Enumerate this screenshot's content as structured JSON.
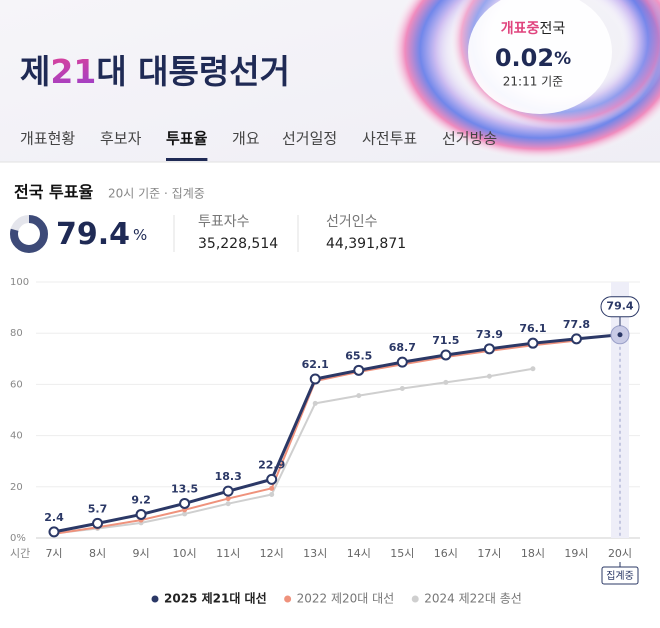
{
  "header": {
    "title_pre": "제",
    "title_num": "21",
    "title_post": "대 대통령선거",
    "status": "개표중",
    "region": "전국",
    "count_rate": "0.02",
    "count_unit": "%",
    "time": "21:11 기준"
  },
  "tabs": [
    "개표현황",
    "후보자",
    "투표율",
    "개요",
    "선거일정",
    "사전투표",
    "선거방송"
  ],
  "active_tab": 2,
  "turnout": {
    "title": "전국 투표율",
    "basis": "20시 기준 · 집계중",
    "rate": 79.4,
    "unit": "%",
    "voters_label": "투표자수",
    "voters": "35,228,514",
    "electors_label": "선거인수",
    "electors": "44,391,871"
  },
  "chart_data": {
    "type": "line",
    "x_label": "시간",
    "categories": [
      "7시",
      "8시",
      "9시",
      "10시",
      "11시",
      "12시",
      "13시",
      "14시",
      "15시",
      "16시",
      "17시",
      "18시",
      "19시",
      "20시"
    ],
    "series": [
      {
        "name": "2025 제21대 대선",
        "color": "#2b3866",
        "values": [
          2.4,
          5.7,
          9.2,
          13.5,
          18.3,
          22.9,
          62.1,
          65.5,
          68.7,
          71.5,
          73.9,
          76.1,
          77.8,
          79.4
        ]
      },
      {
        "name": "2022 제20대 대선",
        "color": "#ef927c",
        "values": [
          1.6,
          4.2,
          7.0,
          11.0,
          15.4,
          19.4,
          61.3,
          64.9,
          67.8,
          70.7,
          73.1,
          75.3,
          77.1,
          null
        ]
      },
      {
        "name": "2024 제22대 총선",
        "color": "#cfcfcf",
        "values": [
          1.8,
          3.7,
          5.9,
          9.4,
          13.4,
          17.0,
          52.6,
          55.6,
          58.4,
          60.8,
          63.2,
          66.1,
          null,
          null
        ]
      }
    ],
    "ylim": [
      0,
      100
    ],
    "yticks": [
      {
        "value": 0,
        "label": "0%"
      },
      20,
      40,
      60,
      80,
      100
    ],
    "grid": true,
    "highlight_annotation": "집계중"
  }
}
